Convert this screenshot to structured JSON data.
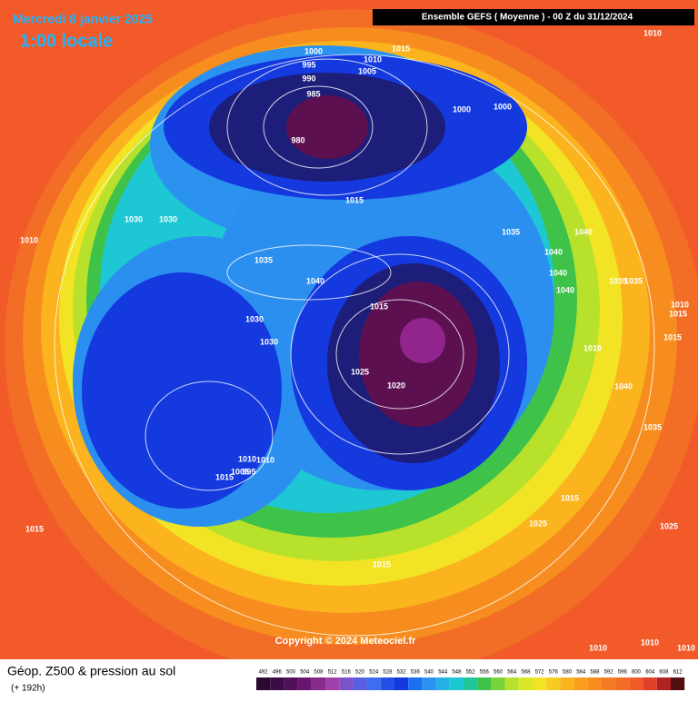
{
  "header": {
    "date": "Mercredi 8 janvier 2025",
    "time": "1:00 locale",
    "run": "Ensemble GEFS  ( Moyenne )  -  00 Z du 31/12/2024"
  },
  "isobars": [
    1000,
    995,
    990,
    985,
    980,
    1010,
    1005,
    1015,
    1010,
    1000,
    1000,
    1030,
    1030,
    1010,
    1035,
    1040,
    1015,
    1035,
    1040,
    1040,
    1040,
    1040,
    1035,
    1035,
    1010,
    1015,
    1015,
    1015,
    1030,
    1030,
    1025,
    1020,
    1010,
    1040,
    1035,
    1015,
    1025,
    1025,
    1015,
    995,
    1005,
    1010,
    1015,
    1015,
    1010,
    1010,
    1010,
    1010
  ],
  "copyright": "Copyright © 2024 Meteociel.fr",
  "footer": {
    "title": "Géop. Z500 & pression au sol",
    "subtitle": "(+ 192h)"
  },
  "scale": [
    492,
    496,
    500,
    504,
    508,
    512,
    516,
    520,
    524,
    528,
    532,
    536,
    540,
    544,
    548,
    552,
    556,
    560,
    564,
    568,
    572,
    576,
    580,
    584,
    588,
    592,
    596,
    600,
    604,
    608,
    612
  ]
}
